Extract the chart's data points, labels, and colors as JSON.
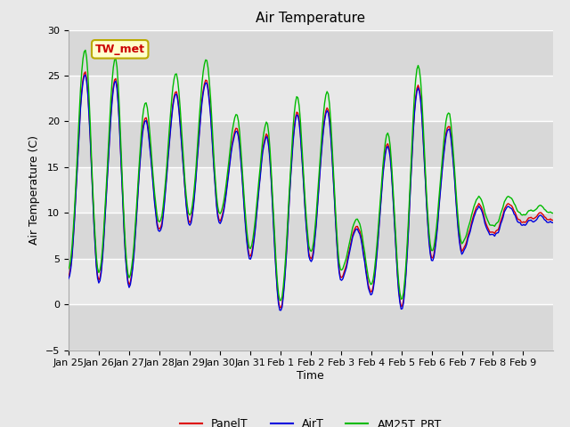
{
  "title": "Air Temperature",
  "xlabel": "Time",
  "ylabel": "Air Temperature (C)",
  "ylim": [
    -5,
    30
  ],
  "yticks": [
    -5,
    0,
    5,
    10,
    15,
    20,
    25,
    30
  ],
  "fig_bg_color": "#e8e8e8",
  "plot_bg_color": "#e8e8e8",
  "band_colors": [
    "#d8d8d8",
    "#e8e8e8"
  ],
  "grid_color": "#cccccc",
  "line_colors": {
    "PanelT": "#dd0000",
    "AirT": "#0000dd",
    "AM25T_PRT": "#00bb00"
  },
  "line_width": 1.0,
  "annotation_text": "TW_met",
  "annotation_box_color": "#ffffcc",
  "annotation_border_color": "#bbaa00",
  "annotation_text_color": "#cc0000",
  "x_tick_labels": [
    "Jan 25",
    "Jan 26",
    "Jan 27",
    "Jan 28",
    "Jan 29",
    "Jan 30",
    "Jan 31",
    "Feb 1",
    "Feb 2",
    "Feb 3",
    "Feb 4",
    "Feb 5",
    "Feb 6",
    "Feb 7",
    "Feb 8",
    "Feb 9"
  ],
  "num_points": 400,
  "title_fontsize": 11,
  "label_fontsize": 9,
  "tick_fontsize": 8,
  "legend_fontsize": 9
}
